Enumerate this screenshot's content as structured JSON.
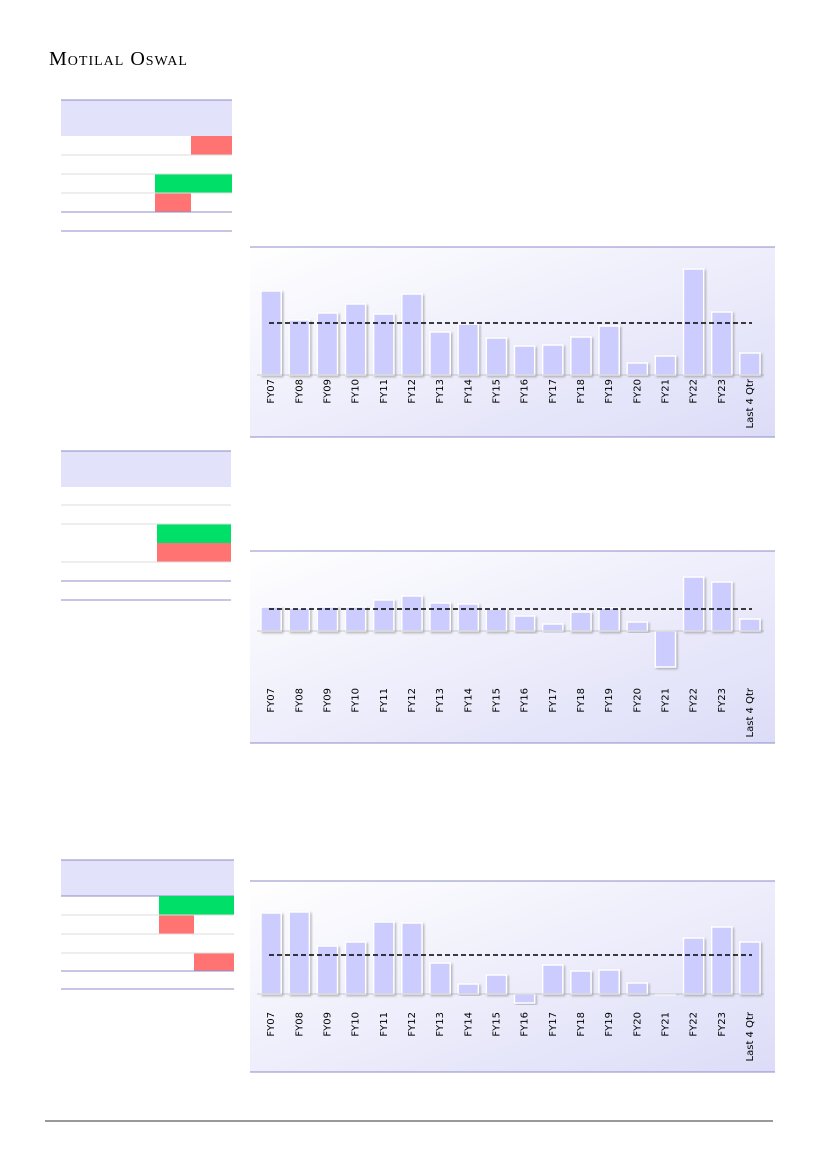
{
  "header": {
    "brand": "Motilal Oswal"
  },
  "chart_data": [
    {
      "type": "bar",
      "categories": [
        "FY07",
        "FY08",
        "FY09",
        "FY10",
        "FY11",
        "FY12",
        "FY13",
        "FY14",
        "FY15",
        "FY16",
        "FY17",
        "FY18",
        "FY19",
        "FY20",
        "FY21",
        "FY22",
        "FY23",
        "Last 4 Qtr"
      ],
      "values": [
        84,
        55,
        62,
        71,
        61,
        81,
        43,
        51,
        37,
        29,
        30,
        38,
        49,
        12,
        19,
        106,
        63,
        22
      ],
      "reference_line": 52,
      "ylim": [
        0,
        128
      ],
      "color": "#ccccff"
    },
    {
      "type": "bar",
      "categories": [
        "FY07",
        "FY08",
        "FY09",
        "FY10",
        "FY11",
        "FY12",
        "FY13",
        "FY14",
        "FY15",
        "FY16",
        "FY17",
        "FY18",
        "FY19",
        "FY20",
        "FY21",
        "FY22",
        "FY23",
        "Last 4 Qtr"
      ],
      "values": [
        24,
        23,
        24,
        24,
        31,
        35,
        28,
        27,
        22,
        15,
        7,
        19,
        23,
        9,
        -36,
        54,
        49,
        12
      ],
      "reference_line": 22,
      "ylim": [
        -40,
        80
      ],
      "color": "#ccccff"
    },
    {
      "type": "bar",
      "categories": [
        "FY07",
        "FY08",
        "FY09",
        "FY10",
        "FY11",
        "FY12",
        "FY13",
        "FY14",
        "FY15",
        "FY16",
        "FY17",
        "FY18",
        "FY19",
        "FY20",
        "FY21",
        "FY22",
        "FY23",
        "Last 4 Qtr"
      ],
      "values": [
        81,
        82,
        48,
        52,
        72,
        71,
        31,
        10,
        19,
        -9,
        29,
        23,
        24,
        11,
        -1,
        56,
        67,
        52
      ],
      "reference_line": 39,
      "ylim": [
        -15,
        113
      ],
      "color": "#ccccff"
    }
  ]
}
